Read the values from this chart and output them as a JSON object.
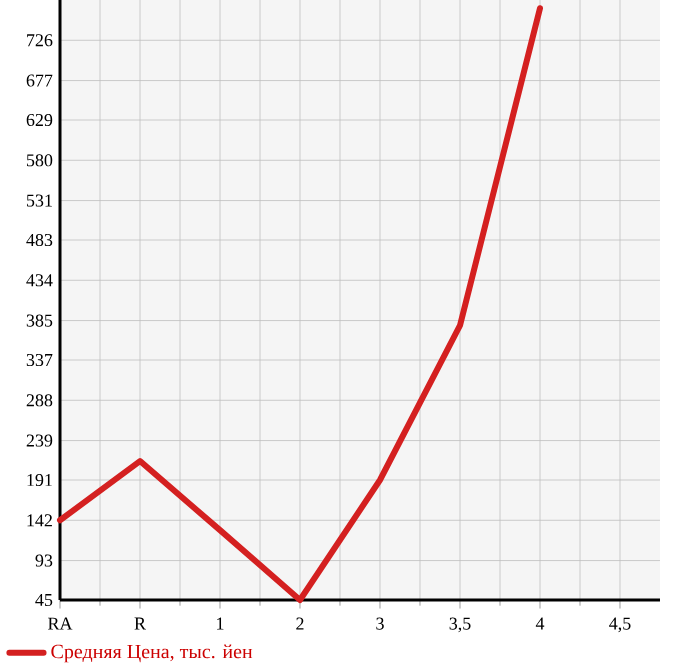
{
  "chart_data": {
    "type": "line",
    "categories": [
      "RA",
      "R",
      "1",
      "2",
      "3",
      "3,5",
      "4",
      "4,5"
    ],
    "series": [
      {
        "name": "Средняя Цена, тыс. йен",
        "color": "#d42020",
        "values": [
          142,
          214,
          130,
          45,
          191,
          379,
          765,
          null
        ]
      }
    ],
    "ylim": [
      45,
      775
    ],
    "yticks": [
      45,
      93,
      142,
      191,
      239,
      288,
      337,
      385,
      434,
      483,
      531,
      580,
      629,
      677,
      726
    ],
    "grid": true,
    "legend": "bottom",
    "marker": "none",
    "line_style": "solid"
  }
}
